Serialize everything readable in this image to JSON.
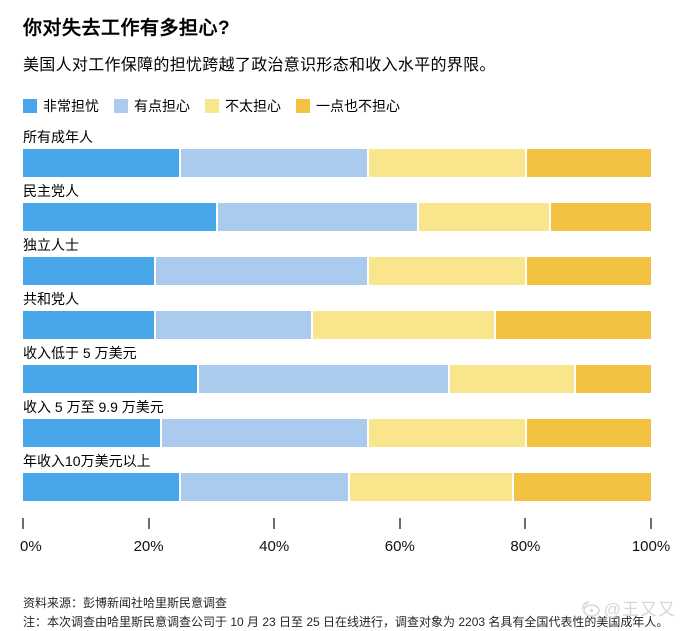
{
  "title": "你对失去工作有多担心?",
  "subtitle": "美国人对工作保障的担忧跨越了政治意识形态和收入水平的界限。",
  "legend": [
    {
      "label": "非常担忧",
      "color": "#47a7e8"
    },
    {
      "label": "有点担心",
      "color": "#abcbee"
    },
    {
      "label": "不太担心",
      "color": "#f8e58c"
    },
    {
      "label": "一点也不担心",
      "color": "#f4c242"
    }
  ],
  "chart_data": {
    "type": "bar",
    "orientation": "horizontal",
    "stacked": true,
    "unit": "percent",
    "categories": [
      "所有成年人",
      "民主党人",
      "独立人士",
      "共和党人",
      "收入低于 5 万美元",
      "收入 5 万至 9.9 万美元",
      "年收入10万美元以上"
    ],
    "series": [
      {
        "name": "非常担忧",
        "color": "#47a7e8",
        "values": [
          25,
          31,
          21,
          21,
          28,
          22,
          25
        ]
      },
      {
        "name": "有点担心",
        "color": "#abcbee",
        "values": [
          30,
          32,
          34,
          25,
          40,
          33,
          27
        ]
      },
      {
        "name": "不太担心",
        "color": "#f8e58c",
        "values": [
          25,
          21,
          25,
          29,
          20,
          25,
          26
        ]
      },
      {
        "name": "一点也不担心",
        "color": "#f4c242",
        "values": [
          20,
          16,
          20,
          25,
          12,
          20,
          22
        ]
      }
    ],
    "x_axis": {
      "ticks": [
        "0%",
        "20%",
        "40%",
        "60%",
        "80%",
        "100%"
      ],
      "range": [
        0,
        100
      ],
      "grid": false
    },
    "legend_position": "top"
  },
  "footer": {
    "source": "资料来源：彭博新闻社哈里斯民意调查",
    "note": "注：本次调查由哈里斯民意调查公司于 10 月 23 日至 25 日在线进行，调查对象为 2203 名具有全国代表性的美国成年人。"
  },
  "watermark": {
    "text": "@王又又",
    "icon": "weibo-eye-icon"
  }
}
